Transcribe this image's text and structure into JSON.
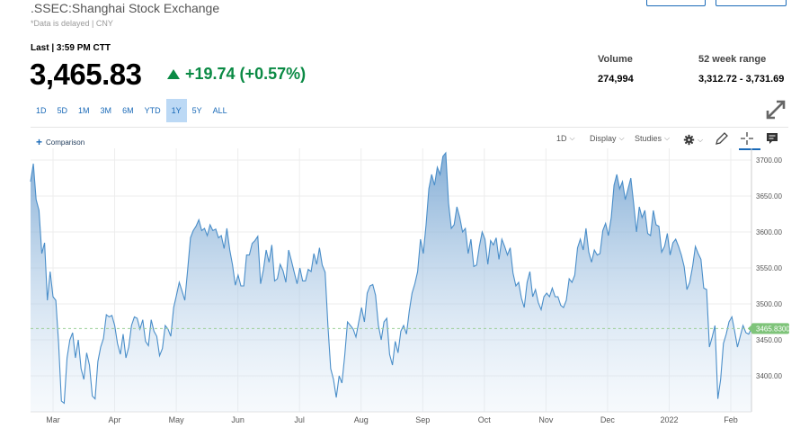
{
  "header": {
    "title": ".SSEC:Shanghai Stock Exchange",
    "subtitle": "*Data is delayed | CNY",
    "last_label": "Last | 3:59 PM CTT",
    "price": "3,465.83",
    "change": "+19.74 (+0.57%)"
  },
  "stats": {
    "volume_label": "Volume",
    "volume_value": "274,994",
    "range_label": "52 week range",
    "range_value": "3,312.72 - 3,731.69"
  },
  "time_ranges": [
    "1D",
    "5D",
    "1M",
    "3M",
    "6M",
    "YTD",
    "1Y",
    "5Y",
    "ALL"
  ],
  "active_range": "1Y",
  "toolbar": {
    "comparison_label": "Comparison",
    "interval_label": "1D",
    "display_label": "Display",
    "studies_label": "Studies"
  },
  "icons": [
    "expand-icon",
    "plus-icon",
    "chevron-down-icon",
    "gear-icon",
    "pencil-icon",
    "crosshair-icon",
    "comment-icon"
  ],
  "colors": {
    "accent": "#1a6ab8",
    "up": "#0a8a44",
    "line": "#4a8ec9",
    "price_tag": "#7fc47a"
  },
  "chart_data": {
    "type": "area",
    "x_ticks": [
      "Mar",
      "Apr",
      "May",
      "Jun",
      "Jul",
      "Aug",
      "Sep",
      "Oct",
      "Nov",
      "Dec",
      "2022",
      "Feb"
    ],
    "y_ticks": [
      "3700.00",
      "3650.00",
      "3600.00",
      "3550.00",
      "3500.00",
      "3450.00",
      "3400.00"
    ],
    "ylim": [
      3350,
      3710
    ],
    "current_value_label": "3465.8300",
    "current_value": 3465.83,
    "series": [
      {
        "values": [
          3670,
          3695,
          3645,
          3630,
          3570,
          3585,
          3505,
          3545,
          3510,
          3505,
          3445,
          3365,
          3362,
          3425,
          3450,
          3460,
          3425,
          3450,
          3410,
          3395,
          3432,
          3415,
          3372,
          3368,
          3420,
          3440,
          3452,
          3485,
          3482,
          3484,
          3470,
          3445,
          3430,
          3458,
          3425,
          3440,
          3470,
          3482,
          3480,
          3465,
          3478,
          3448,
          3442,
          3478,
          3462,
          3455,
          3428,
          3438,
          3470,
          3465,
          3455,
          3495,
          3512,
          3530,
          3518,
          3505,
          3548,
          3592,
          3602,
          3608,
          3617,
          3602,
          3605,
          3595,
          3610,
          3602,
          3604,
          3592,
          3595,
          3577,
          3605,
          3575,
          3554,
          3526,
          3540,
          3525,
          3525,
          3568,
          3568,
          3584,
          3588,
          3594,
          3528,
          3547,
          3575,
          3558,
          3582,
          3532,
          3535,
          3555,
          3546,
          3530,
          3575,
          3560,
          3544,
          3528,
          3550,
          3532,
          3532,
          3548,
          3545,
          3570,
          3555,
          3578,
          3554,
          3544,
          3470,
          3410,
          3395,
          3370,
          3400,
          3390,
          3428,
          3475,
          3470,
          3465,
          3454,
          3475,
          3495,
          3475,
          3515,
          3525,
          3527,
          3512,
          3470,
          3450,
          3475,
          3480,
          3430,
          3415,
          3448,
          3432,
          3462,
          3470,
          3458,
          3490,
          3515,
          3528,
          3545,
          3590,
          3570,
          3610,
          3660,
          3680,
          3665,
          3690,
          3680,
          3705,
          3710,
          3640,
          3605,
          3610,
          3635,
          3620,
          3600,
          3605,
          3570,
          3590,
          3552,
          3554,
          3580,
          3600,
          3590,
          3555,
          3588,
          3582,
          3592,
          3562,
          3590,
          3580,
          3568,
          3578,
          3543,
          3525,
          3530,
          3508,
          3495,
          3530,
          3545,
          3510,
          3520,
          3502,
          3492,
          3510,
          3515,
          3510,
          3522,
          3510,
          3510,
          3498,
          3495,
          3505,
          3535,
          3530,
          3540,
          3578,
          3590,
          3575,
          3605,
          3572,
          3558,
          3575,
          3568,
          3570,
          3602,
          3612,
          3595,
          3620,
          3665,
          3680,
          3660,
          3670,
          3645,
          3660,
          3675,
          3640,
          3600,
          3635,
          3620,
          3630,
          3598,
          3595,
          3630,
          3610,
          3608,
          3572,
          3580,
          3598,
          3568,
          3585,
          3590,
          3580,
          3568,
          3552,
          3520,
          3530,
          3552,
          3580,
          3570,
          3562,
          3522,
          3520,
          3440,
          3454,
          3470,
          3368,
          3395,
          3445,
          3458,
          3475,
          3482,
          3462,
          3440,
          3455,
          3470,
          3460,
          3458,
          3466
        ]
      }
    ]
  }
}
